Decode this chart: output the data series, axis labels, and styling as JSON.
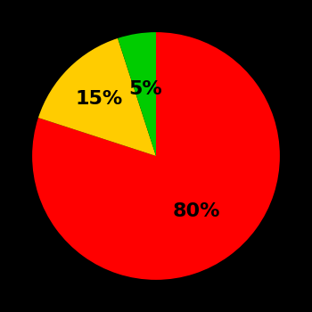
{
  "slices": [
    80,
    15,
    5
  ],
  "labels": [
    "80%",
    "15%",
    "5%"
  ],
  "colors": [
    "#ff0000",
    "#ffcc00",
    "#00cc00"
  ],
  "startangle": 90,
  "background_color": "#000000",
  "text_color": "#000000",
  "fontsize": 16,
  "fontweight": "bold",
  "label_radii": [
    0.55,
    0.65,
    0.55
  ]
}
